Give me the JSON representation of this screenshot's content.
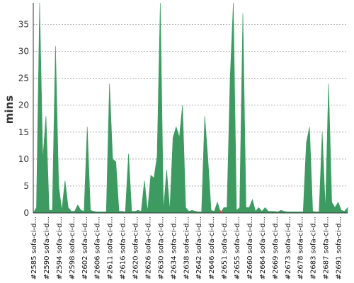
{
  "chart_data": {
    "type": "area",
    "ylabel": "mins",
    "xlabel": "",
    "title": "",
    "ylim": [
      0,
      39
    ],
    "yticks": [
      0,
      5,
      10,
      15,
      20,
      25,
      30,
      35
    ],
    "grid": true,
    "colors": {
      "pass": "#3d9b62",
      "fail": "#e05050",
      "grid": "#888888",
      "axis": "#333333"
    },
    "x_labels": [
      {
        "index": 0,
        "label": "#2585 sofa-ci-d..."
      },
      {
        "index": 4,
        "label": "#2590 sofa-ci-d..."
      },
      {
        "index": 8,
        "label": "#2594 sofa-ci-d..."
      },
      {
        "index": 12,
        "label": "#2598 sofa-ci-d..."
      },
      {
        "index": 16,
        "label": "#2602 sofa-ci-d..."
      },
      {
        "index": 20,
        "label": "#2606 sofa-ci-d..."
      },
      {
        "index": 24,
        "label": "#2611 sofa-ci-d..."
      },
      {
        "index": 28,
        "label": "#2616 sofa-ci-d..."
      },
      {
        "index": 32,
        "label": "#2620 sofa-ci-d..."
      },
      {
        "index": 36,
        "label": "#2626 sofa-ci-d..."
      },
      {
        "index": 40,
        "label": "#2630 sofa-ci-d..."
      },
      {
        "index": 44,
        "label": "#2634 sofa-ci-d..."
      },
      {
        "index": 48,
        "label": "#2638 sofa-ci-d..."
      },
      {
        "index": 52,
        "label": "#2642 sofa-ci-d..."
      },
      {
        "index": 56,
        "label": "#2646 sofa-ci-d..."
      },
      {
        "index": 60,
        "label": "#2651 sofa-ci-d..."
      },
      {
        "index": 64,
        "label": "#2655 sofa-ci-d..."
      },
      {
        "index": 68,
        "label": "#2660 sofa-ci-d..."
      },
      {
        "index": 72,
        "label": "#2664 sofa-ci-d..."
      },
      {
        "index": 76,
        "label": "#2669 sofa-ci-d..."
      },
      {
        "index": 80,
        "label": "#2673 sofa-ci-d..."
      },
      {
        "index": 84,
        "label": "#2678 sofa-ci-d..."
      },
      {
        "index": 88,
        "label": "#2683 sofa-ci-d..."
      },
      {
        "index": 92,
        "label": "#2687 sofa-ci-d..."
      },
      {
        "index": 96,
        "label": "#2691 sofa-ci-d..."
      }
    ],
    "series": [
      {
        "values": [
          0,
          1,
          39,
          10,
          18,
          0.5,
          0.5,
          31,
          5,
          0.5,
          6,
          1,
          0.3,
          0.3,
          1.5,
          0.5,
          0.3,
          16,
          0.5,
          0.3,
          0.2,
          0.2,
          0.2,
          0.2,
          24,
          10,
          9.5,
          0.3,
          0.3,
          0.2,
          11,
          0.3,
          0.3,
          0.5,
          0.3,
          6,
          0.3,
          7,
          6.5,
          10.5,
          40,
          0.5,
          8,
          0.5,
          14,
          16,
          14,
          20,
          1,
          0.3,
          0.5,
          0.3,
          0.2,
          0.2,
          18,
          10,
          0.5,
          0.3,
          2,
          0,
          1,
          1,
          25,
          40,
          0.5,
          1,
          37,
          1,
          1,
          2.5,
          0.3,
          1,
          0.3,
          1,
          0.3,
          0.3,
          0.3,
          0.2,
          0.5,
          0.3,
          0.2,
          0.2,
          0.2,
          0.2,
          0.2,
          0.2,
          13,
          16,
          0.3,
          0.2,
          0.2,
          15,
          0.5,
          24,
          2,
          1,
          2,
          0.5,
          0.3,
          1
        ]
      }
    ]
  }
}
